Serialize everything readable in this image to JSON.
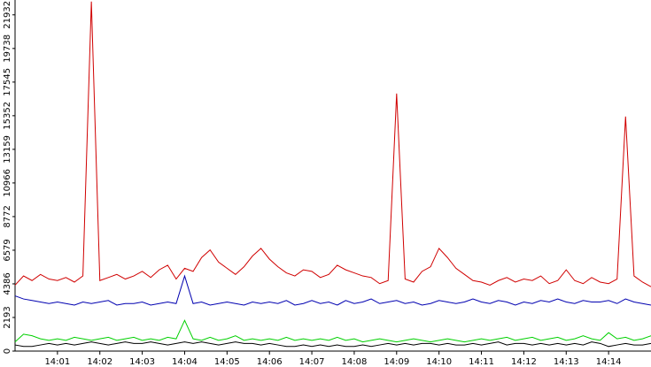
{
  "chart_data": {
    "type": "line",
    "x": [
      0,
      0.2,
      0.4,
      0.6,
      0.8,
      1,
      1.2,
      1.4,
      1.6,
      1.8,
      2,
      2.2,
      2.4,
      2.6,
      2.8,
      3,
      3.2,
      3.4,
      3.6,
      3.8,
      4,
      4.2,
      4.4,
      4.6,
      4.8,
      5,
      5.2,
      5.4,
      5.6,
      5.8,
      6,
      6.2,
      6.4,
      6.6,
      6.8,
      7,
      7.2,
      7.4,
      7.6,
      7.8,
      8,
      8.2,
      8.4,
      8.6,
      8.8,
      9,
      9.2,
      9.4,
      9.6,
      9.8,
      10,
      10.2,
      10.4,
      10.6,
      10.8,
      11,
      11.2,
      11.4,
      11.6,
      11.8,
      12,
      12.2,
      12.4,
      12.6,
      12.8,
      13,
      13.2,
      13.4,
      13.6,
      13.8,
      14,
      14.2,
      14.4,
      14.6,
      14.8,
      15
    ],
    "series": [
      {
        "color": "#d00000",
        "values": [
          4300,
          4900,
          4600,
          5000,
          4700,
          4600,
          4800,
          4500,
          4900,
          22800,
          4600,
          4800,
          5000,
          4700,
          4900,
          5200,
          4800,
          5300,
          5600,
          4700,
          5400,
          5200,
          6100,
          6600,
          5800,
          5400,
          5000,
          5500,
          6200,
          6700,
          6000,
          5500,
          5100,
          4900,
          5300,
          5200,
          4800,
          5000,
          5600,
          5300,
          5100,
          4900,
          4800,
          4400,
          4600,
          16800,
          4700,
          4500,
          5200,
          5500,
          6700,
          6100,
          5400,
          5000,
          4600,
          4500,
          4300,
          4600,
          4800,
          4500,
          4700,
          4600,
          4900,
          4400,
          4600,
          5300,
          4600,
          4400,
          4800,
          4500,
          4400,
          4700,
          15300,
          4900,
          4500,
          4200
        ]
      },
      {
        "color": "#0000b0",
        "values": [
          3600,
          3400,
          3300,
          3200,
          3100,
          3200,
          3100,
          3000,
          3200,
          3100,
          3200,
          3300,
          3000,
          3100,
          3100,
          3200,
          3000,
          3100,
          3200,
          3100,
          4900,
          3100,
          3200,
          3000,
          3100,
          3200,
          3100,
          3000,
          3200,
          3100,
          3200,
          3100,
          3300,
          3000,
          3100,
          3300,
          3100,
          3200,
          3000,
          3300,
          3100,
          3200,
          3400,
          3100,
          3200,
          3300,
          3100,
          3200,
          3000,
          3100,
          3300,
          3200,
          3100,
          3200,
          3400,
          3200,
          3100,
          3300,
          3200,
          3000,
          3200,
          3100,
          3300,
          3200,
          3400,
          3200,
          3100,
          3300,
          3200,
          3200,
          3300,
          3100,
          3400,
          3200,
          3100,
          3000
        ]
      },
      {
        "color": "#00d000",
        "values": [
          600,
          1100,
          1000,
          800,
          700,
          800,
          700,
          900,
          800,
          700,
          800,
          900,
          700,
          800,
          900,
          700,
          800,
          700,
          900,
          800,
          2000,
          800,
          700,
          900,
          700,
          800,
          1000,
          700,
          800,
          700,
          800,
          700,
          900,
          700,
          800,
          700,
          800,
          700,
          900,
          700,
          800,
          600,
          700,
          800,
          700,
          600,
          700,
          800,
          700,
          600,
          700,
          800,
          700,
          600,
          700,
          800,
          700,
          800,
          900,
          700,
          800,
          900,
          700,
          800,
          900,
          700,
          800,
          1000,
          800,
          700,
          1200,
          800,
          900,
          700,
          800,
          1000
        ]
      },
      {
        "color": "#000000",
        "values": [
          400,
          300,
          300,
          400,
          500,
          400,
          500,
          400,
          500,
          600,
          500,
          400,
          500,
          600,
          500,
          500,
          600,
          500,
          400,
          500,
          600,
          500,
          600,
          500,
          400,
          500,
          600,
          500,
          500,
          400,
          500,
          400,
          300,
          300,
          400,
          300,
          400,
          300,
          400,
          300,
          300,
          400,
          300,
          400,
          500,
          400,
          500,
          400,
          500,
          500,
          400,
          500,
          400,
          400,
          500,
          400,
          500,
          600,
          400,
          500,
          500,
          400,
          500,
          400,
          500,
          400,
          500,
          400,
          600,
          500,
          300,
          400,
          500,
          400,
          400,
          500
        ]
      }
    ],
    "xlim": [
      0,
      15
    ],
    "xticks": [
      {
        "value": 1,
        "label": "14:01"
      },
      {
        "value": 2,
        "label": "14:02"
      },
      {
        "value": 3,
        "label": "14:03"
      },
      {
        "value": 4,
        "label": "14:04"
      },
      {
        "value": 5,
        "label": "14:05"
      },
      {
        "value": 6,
        "label": "14:06"
      },
      {
        "value": 7,
        "label": "14:07"
      },
      {
        "value": 8,
        "label": "14:08"
      },
      {
        "value": 9,
        "label": "14:09"
      },
      {
        "value": 10,
        "label": "14:10"
      },
      {
        "value": 11,
        "label": "14:11"
      },
      {
        "value": 12,
        "label": "14:12"
      },
      {
        "value": 13,
        "label": "14:13"
      },
      {
        "value": 14,
        "label": "14:14"
      }
    ],
    "ylim": [
      0,
      22900
    ],
    "yticks": [
      0,
      2193,
      4386,
      6579,
      8772,
      10966,
      13159,
      15352,
      17545,
      19738,
      21932
    ]
  }
}
